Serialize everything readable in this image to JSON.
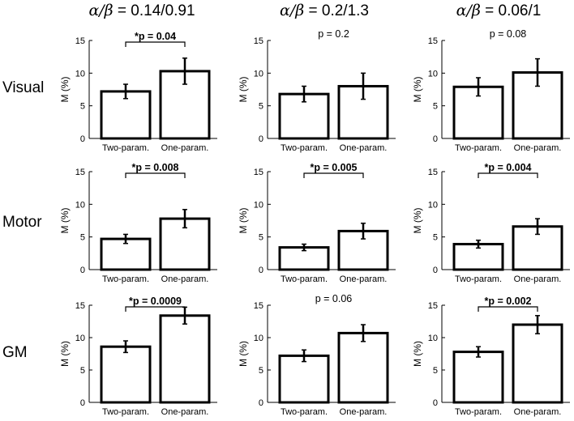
{
  "column_headers": [
    {
      "symbol": "α/β",
      "value": " = 0.14/0.91"
    },
    {
      "symbol": "α/β",
      "value": " = 0.2/1.3"
    },
    {
      "symbol": "α/β",
      "value": " = 0.06/1"
    }
  ],
  "row_labels": [
    "Visual",
    "Motor",
    "GM"
  ],
  "chart_data": [
    {
      "type": "bar",
      "row": "Visual",
      "col": 0,
      "ylabel": "M (%)",
      "ylim": [
        0,
        15
      ],
      "yticks": [
        0,
        5,
        10,
        15
      ],
      "categories": [
        "Two-param.",
        "One-param."
      ],
      "values": [
        7.2,
        10.3
      ],
      "errors": [
        1.1,
        2.0
      ],
      "annotation": "*p = 0.04",
      "significant": true
    },
    {
      "type": "bar",
      "row": "Visual",
      "col": 1,
      "ylabel": "M (%)",
      "ylim": [
        0,
        15
      ],
      "yticks": [
        0,
        5,
        10,
        15
      ],
      "categories": [
        "Two-param.",
        "One-param."
      ],
      "values": [
        6.8,
        8.0
      ],
      "errors": [
        1.2,
        2.0
      ],
      "annotation": "p = 0.2",
      "significant": false
    },
    {
      "type": "bar",
      "row": "Visual",
      "col": 2,
      "ylabel": "M (%)",
      "ylim": [
        0,
        15
      ],
      "yticks": [
        0,
        5,
        10,
        15
      ],
      "categories": [
        "Two-param.",
        "One-param."
      ],
      "values": [
        7.9,
        10.1
      ],
      "errors": [
        1.4,
        2.1
      ],
      "annotation": "p = 0.08",
      "significant": false
    },
    {
      "type": "bar",
      "row": "Motor",
      "col": 0,
      "ylabel": "M (%)",
      "ylim": [
        0,
        15
      ],
      "yticks": [
        0,
        5,
        10,
        15
      ],
      "categories": [
        "Two-param.",
        "One-param."
      ],
      "values": [
        4.7,
        7.8
      ],
      "errors": [
        0.7,
        1.4
      ],
      "annotation": "*p = 0.008",
      "significant": true
    },
    {
      "type": "bar",
      "row": "Motor",
      "col": 1,
      "ylabel": "M (%)",
      "ylim": [
        0,
        15
      ],
      "yticks": [
        0,
        5,
        10,
        15
      ],
      "categories": [
        "Two-param.",
        "One-param."
      ],
      "values": [
        3.4,
        5.9
      ],
      "errors": [
        0.5,
        1.2
      ],
      "annotation": "*p = 0.005",
      "significant": true
    },
    {
      "type": "bar",
      "row": "Motor",
      "col": 2,
      "ylabel": "M (%)",
      "ylim": [
        0,
        15
      ],
      "yticks": [
        0,
        5,
        10,
        15
      ],
      "categories": [
        "Two-param.",
        "One-param."
      ],
      "values": [
        3.9,
        6.6
      ],
      "errors": [
        0.6,
        1.2
      ],
      "annotation": "*p = 0.004",
      "significant": true
    },
    {
      "type": "bar",
      "row": "GM",
      "col": 0,
      "ylabel": "M (%)",
      "ylim": [
        0,
        15
      ],
      "yticks": [
        0,
        5,
        10,
        15
      ],
      "categories": [
        "Two-param.",
        "One-param."
      ],
      "values": [
        8.6,
        13.4
      ],
      "errors": [
        0.9,
        1.3
      ],
      "annotation": "*p = 0.0009",
      "significant": true
    },
    {
      "type": "bar",
      "row": "GM",
      "col": 1,
      "ylabel": "M (%)",
      "ylim": [
        0,
        15
      ],
      "yticks": [
        0,
        5,
        10,
        15
      ],
      "categories": [
        "Two-param.",
        "One-param."
      ],
      "values": [
        7.2,
        10.7
      ],
      "errors": [
        0.9,
        1.3
      ],
      "annotation": "p = 0.06",
      "significant": false
    },
    {
      "type": "bar",
      "row": "GM",
      "col": 2,
      "ylabel": "M (%)",
      "ylim": [
        0,
        15
      ],
      "yticks": [
        0,
        5,
        10,
        15
      ],
      "categories": [
        "Two-param.",
        "One-param."
      ],
      "values": [
        7.8,
        12.0
      ],
      "errors": [
        0.8,
        1.4
      ],
      "annotation": "*p = 0.002",
      "significant": true
    }
  ]
}
